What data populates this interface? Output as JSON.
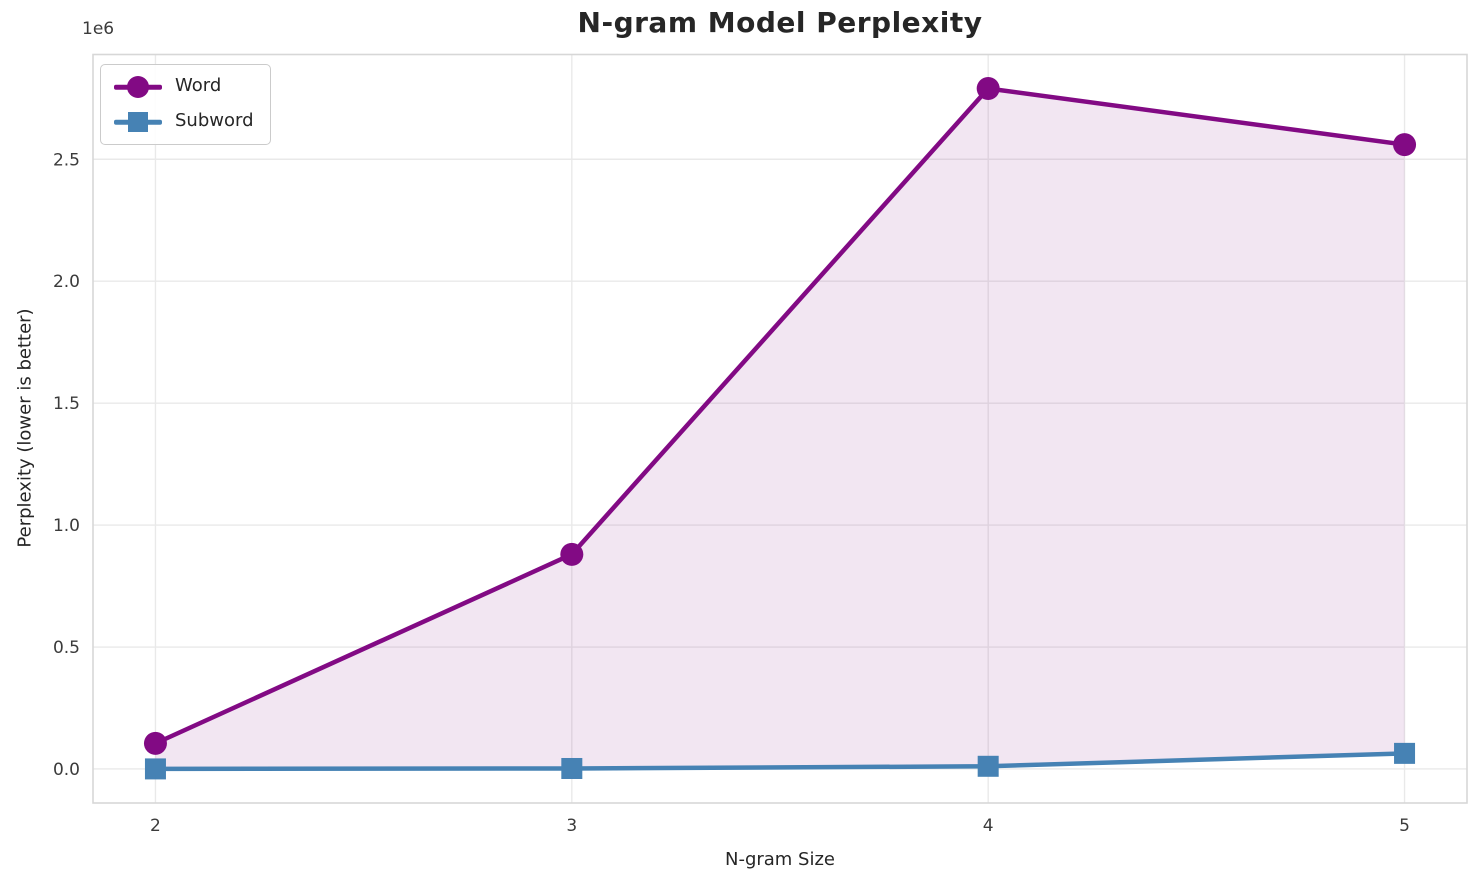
{
  "chart_data": {
    "type": "line",
    "title": "N-gram Model Perplexity",
    "xlabel": "N-gram Size",
    "ylabel": "Perplexity (lower is better)",
    "x": [
      2,
      3,
      4,
      5
    ],
    "series": [
      {
        "name": "Word",
        "marker": "circle",
        "color": "#820A84",
        "values": [
          105000,
          880000,
          2790000,
          2560000
        ]
      },
      {
        "name": "Subword",
        "marker": "square",
        "color": "#4682B4",
        "values": [
          300,
          2000,
          11000,
          64000
        ]
      }
    ],
    "fill_between": {
      "series": [
        "Word",
        "Subword"
      ],
      "color": "rgba(130,10,132,0.10)"
    },
    "legend": {
      "position": "upper-left",
      "entries": [
        "Word",
        "Subword"
      ]
    },
    "axes": {
      "xlim": [
        1.85,
        5.15
      ],
      "ylim": [
        -139500,
        2929500
      ],
      "xticks": {
        "values": [
          2,
          3,
          4,
          5
        ],
        "labels": [
          "2",
          "3",
          "4",
          "5"
        ]
      },
      "yticks": {
        "values": [
          0,
          500000,
          1000000,
          1500000,
          2000000,
          2500000
        ],
        "labels": [
          "0.0",
          "0.5",
          "1.0",
          "1.5",
          "2.0",
          "2.5"
        ],
        "offset_text": "1e6"
      },
      "grid": true
    },
    "style": {
      "grid_color": "#e9e9e9",
      "spine_color": "#d7d7d7",
      "title_color": "#262626",
      "tick_color": "#3b3b3b",
      "background": "#ffffff"
    }
  }
}
